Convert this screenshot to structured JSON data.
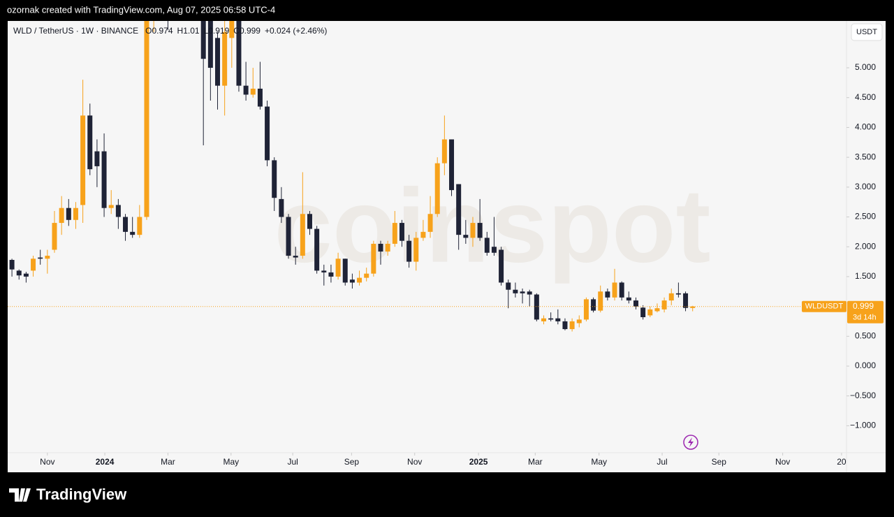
{
  "credit": "ozornak created with TradingView.com, Aug 07, 2025 06:58 UTC-4",
  "brand": "TradingView",
  "chart_data": {
    "type": "candlestick",
    "title": "WLD / TetherUS · 1W · BINANCE",
    "legend_prefixes": [
      "O",
      "H",
      "L",
      "C"
    ],
    "change": "+0.024 (+2.46%)",
    "currency": "USDT",
    "symbol": "WLDUSDT",
    "countdown": "3d 14h",
    "watermark": "coinspot",
    "up_color": "#f7a21b",
    "down_color": "#1f2336",
    "open": [
      1.78,
      1.6,
      1.55,
      1.6,
      1.82,
      1.8,
      1.95,
      2.4,
      2.65,
      2.45,
      2.7,
      4.2,
      3.6,
      3.6,
      2.65,
      2.7,
      2.5,
      2.25,
      2.2,
      2.5,
      5.8,
      7.0,
      8.0,
      7.5,
      10.0,
      9.0,
      8.0,
      6.0,
      5.8,
      5.5,
      4.7,
      5.5,
      5.9,
      4.7,
      4.55,
      4.65,
      4.35,
      3.45,
      2.8,
      2.5,
      1.85,
      1.85,
      2.55,
      2.3,
      1.6,
      1.57,
      1.5,
      1.8,
      1.45,
      1.4,
      1.48,
      1.55,
      2.05,
      1.92,
      2.05,
      2.4,
      2.1,
      1.75,
      2.15,
      2.25,
      2.55,
      3.4,
      3.8,
      3.05,
      2.2,
      2.15,
      2.4,
      2.15,
      2.0,
      1.95,
      1.4,
      1.28,
      1.25,
      1.25,
      1.2,
      0.75,
      0.8,
      0.8,
      0.75,
      0.62,
      0.72,
      0.78,
      1.12,
      0.93,
      1.25,
      1.15,
      1.4,
      1.15,
      1.1,
      0.98,
      0.85,
      0.92,
      0.95,
      1.1,
      1.22,
      1.22,
      0.974
    ],
    "high": [
      1.8,
      1.62,
      1.58,
      1.85,
      1.95,
      1.95,
      2.6,
      2.85,
      2.8,
      2.75,
      4.8,
      4.4,
      3.8,
      3.9,
      2.95,
      2.8,
      2.55,
      2.5,
      2.7,
      6.0,
      7.4,
      8.5,
      9.0,
      11.5,
      11.0,
      9.5,
      8.5,
      6.2,
      5.9,
      5.6,
      5.9,
      6.0,
      6.0,
      5.1,
      5.0,
      5.1,
      4.45,
      3.5,
      3.0,
      2.55,
      2.0,
      3.25,
      2.6,
      2.35,
      1.7,
      1.7,
      1.9,
      1.8,
      1.55,
      1.6,
      1.65,
      2.1,
      2.1,
      2.1,
      2.6,
      2.45,
      2.2,
      2.25,
      2.45,
      2.85,
      3.5,
      4.2,
      3.8,
      3.05,
      2.45,
      2.5,
      2.8,
      2.25,
      2.5,
      2.0,
      1.45,
      1.4,
      1.3,
      1.28,
      1.22,
      0.85,
      0.9,
      0.95,
      0.8,
      0.8,
      0.85,
      1.15,
      1.15,
      1.35,
      1.3,
      1.63,
      1.42,
      1.25,
      1.15,
      1.02,
      1.0,
      1.05,
      1.15,
      1.3,
      1.4,
      1.25,
      1.01
    ],
    "low": [
      1.5,
      1.45,
      1.4,
      1.5,
      1.7,
      1.55,
      1.9,
      2.2,
      2.35,
      2.3,
      2.4,
      3.2,
      3.0,
      2.5,
      2.55,
      2.3,
      2.1,
      2.15,
      2.15,
      2.45,
      5.6,
      6.5,
      5.63,
      7.0,
      8.0,
      7.0,
      6.0,
      3.7,
      4.45,
      4.3,
      4.2,
      5.0,
      4.6,
      4.45,
      4.5,
      4.3,
      3.35,
      2.6,
      2.4,
      1.8,
      1.7,
      1.8,
      2.2,
      1.55,
      1.35,
      1.4,
      1.45,
      1.35,
      1.3,
      1.35,
      1.42,
      1.5,
      1.7,
      1.85,
      2.0,
      2.0,
      1.65,
      1.6,
      2.1,
      2.15,
      2.5,
      3.2,
      2.85,
      1.95,
      2.05,
      2.0,
      2.1,
      1.85,
      1.85,
      1.35,
      0.97,
      1.15,
      1.05,
      1.0,
      0.75,
      0.7,
      0.75,
      0.7,
      0.6,
      0.58,
      0.65,
      0.75,
      0.9,
      0.9,
      1.1,
      1.1,
      1.1,
      1.05,
      0.95,
      0.78,
      0.82,
      0.9,
      0.9,
      1.02,
      1.15,
      0.92,
      0.919
    ],
    "close": [
      1.62,
      1.52,
      1.5,
      1.8,
      1.8,
      1.85,
      2.4,
      2.65,
      2.45,
      2.65,
      4.2,
      3.3,
      3.35,
      2.65,
      2.7,
      2.5,
      2.25,
      2.2,
      2.5,
      5.8,
      7.0,
      8.0,
      7.5,
      10.0,
      9.0,
      8.0,
      6.5,
      5.15,
      5.0,
      4.7,
      5.6,
      5.9,
      4.7,
      4.55,
      4.65,
      4.35,
      3.45,
      2.82,
      2.5,
      1.85,
      1.82,
      2.55,
      2.3,
      1.6,
      1.57,
      1.5,
      1.8,
      1.4,
      1.4,
      1.48,
      1.55,
      2.05,
      1.92,
      2.05,
      2.4,
      2.1,
      1.75,
      2.15,
      2.25,
      2.55,
      3.4,
      3.8,
      2.95,
      2.2,
      2.15,
      2.4,
      2.15,
      1.9,
      1.9,
      1.4,
      1.28,
      1.22,
      1.22,
      1.2,
      0.78,
      0.8,
      0.78,
      0.75,
      0.62,
      0.75,
      0.78,
      1.12,
      0.93,
      1.25,
      1.15,
      1.4,
      1.15,
      1.1,
      1.0,
      0.82,
      0.95,
      0.97,
      1.1,
      1.22,
      1.2,
      0.975,
      0.999
    ],
    "xlim": [
      -0.6,
      117.7
    ],
    "xticks": [
      {
        "value": 5.0,
        "label": "Nov"
      },
      {
        "value": 13.1,
        "label": "2024"
      },
      {
        "value": 22.0,
        "label": "Mar"
      },
      {
        "value": 30.9,
        "label": "May"
      },
      {
        "value": 39.6,
        "label": "Jul"
      },
      {
        "value": 47.9,
        "label": "Sep"
      },
      {
        "value": 56.8,
        "label": "Nov"
      },
      {
        "value": 65.8,
        "label": "2025"
      },
      {
        "value": 73.8,
        "label": "Mar"
      },
      {
        "value": 82.8,
        "label": "May"
      },
      {
        "value": 91.7,
        "label": "Jul"
      },
      {
        "value": 99.7,
        "label": "Sep"
      },
      {
        "value": 108.7,
        "label": "Nov"
      },
      {
        "value": 117.0,
        "label": "20"
      }
    ],
    "ylim": [
      -1.452,
      5.785
    ],
    "yticks": [
      {
        "value": -1,
        "label": "−1.000"
      },
      {
        "value": -0.5,
        "label": "−0.500"
      },
      {
        "value": 0,
        "label": "0.000"
      },
      {
        "value": 0.5,
        "label": "0.500"
      },
      {
        "value": 1.5,
        "label": "1.500"
      },
      {
        "value": 2,
        "label": "2.000"
      },
      {
        "value": 2.5,
        "label": "2.500"
      },
      {
        "value": 3,
        "label": "3.000"
      },
      {
        "value": 3.5,
        "label": "3.500"
      },
      {
        "value": 4,
        "label": "4.000"
      },
      {
        "value": 4.5,
        "label": "4.500"
      },
      {
        "value": 5,
        "label": "5.000"
      }
    ]
  }
}
